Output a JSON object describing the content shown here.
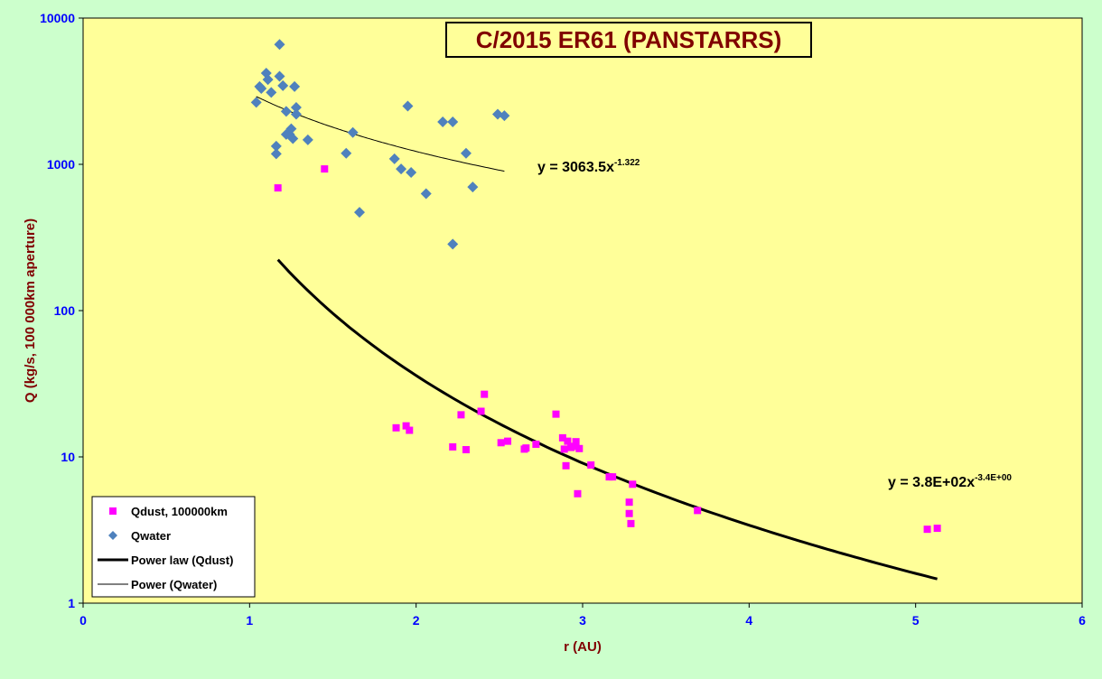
{
  "chart_data": {
    "type": "scatter",
    "title": "C/2015 ER61 (PANSTARRS)",
    "xlabel": "r (AU)",
    "ylabel": "Q (kg/s, 100 000km aperture)",
    "xlim": [
      0,
      6
    ],
    "ylim": [
      1,
      10000
    ],
    "yscale": "log",
    "x_ticks": [
      "0",
      "1",
      "2",
      "3",
      "4",
      "5",
      "6"
    ],
    "y_ticks": [
      "1",
      "10",
      "100",
      "1000",
      "10000"
    ],
    "grid": false,
    "legend_position": "bottom-left",
    "colors": {
      "page_background": "#ccffcc",
      "plot_background": "#ffff99",
      "qdust": "#ff00ff",
      "qwater": "#4f81bd",
      "title": "#800000",
      "ticks": "#0000ff"
    },
    "series": [
      {
        "name": "Qdust, 100000km",
        "kind": "scatter",
        "marker": "square",
        "color": "#ff00ff",
        "points": [
          [
            1.17,
            690
          ],
          [
            1.45,
            930
          ],
          [
            1.88,
            15.8
          ],
          [
            1.94,
            16.3
          ],
          [
            1.96,
            15.2
          ],
          [
            2.22,
            11.7
          ],
          [
            2.27,
            19.4
          ],
          [
            2.3,
            11.2
          ],
          [
            2.39,
            20.5
          ],
          [
            2.41,
            26.8
          ],
          [
            2.51,
            12.5
          ],
          [
            2.55,
            12.8
          ],
          [
            2.65,
            11.3
          ],
          [
            2.66,
            11.5
          ],
          [
            2.72,
            12.2
          ],
          [
            2.84,
            19.6
          ],
          [
            2.88,
            13.5
          ],
          [
            2.89,
            11.3
          ],
          [
            2.9,
            8.7
          ],
          [
            2.91,
            12.8
          ],
          [
            2.93,
            11.6
          ],
          [
            2.95,
            11.8
          ],
          [
            2.96,
            12.7
          ],
          [
            2.97,
            5.6
          ],
          [
            2.98,
            11.4
          ],
          [
            3.05,
            8.8
          ],
          [
            3.16,
            7.3
          ],
          [
            3.18,
            7.3
          ],
          [
            3.28,
            4.9
          ],
          [
            3.28,
            4.1
          ],
          [
            3.29,
            3.5
          ],
          [
            3.3,
            6.5
          ],
          [
            3.69,
            4.3
          ],
          [
            5.07,
            3.2
          ],
          [
            5.13,
            3.25
          ]
        ]
      },
      {
        "name": "Qwater",
        "kind": "scatter",
        "marker": "diamond",
        "color": "#4f81bd",
        "points": [
          [
            1.04,
            2650
          ],
          [
            1.06,
            3400
          ],
          [
            1.07,
            3300
          ],
          [
            1.1,
            4200
          ],
          [
            1.11,
            3800
          ],
          [
            1.13,
            3100
          ],
          [
            1.16,
            1330
          ],
          [
            1.16,
            1180
          ],
          [
            1.18,
            6600
          ],
          [
            1.18,
            4000
          ],
          [
            1.2,
            3450
          ],
          [
            1.22,
            2300
          ],
          [
            1.22,
            1600
          ],
          [
            1.24,
            1600
          ],
          [
            1.25,
            1750
          ],
          [
            1.26,
            1500
          ],
          [
            1.27,
            3400
          ],
          [
            1.28,
            2450
          ],
          [
            1.28,
            2200
          ],
          [
            1.35,
            1470
          ],
          [
            1.58,
            1190
          ],
          [
            1.62,
            1650
          ],
          [
            1.66,
            470
          ],
          [
            1.87,
            1090
          ],
          [
            1.91,
            930
          ],
          [
            1.95,
            2500
          ],
          [
            1.97,
            880
          ],
          [
            2.06,
            630
          ],
          [
            2.16,
            1950
          ],
          [
            2.22,
            1950
          ],
          [
            2.22,
            285
          ],
          [
            2.3,
            1190
          ],
          [
            2.34,
            700
          ],
          [
            2.49,
            2200
          ],
          [
            2.53,
            2150
          ]
        ]
      },
      {
        "name": "Power law (Qdust)",
        "kind": "trendline",
        "color": "#000000",
        "coefficient": 380,
        "exponent": -3.4,
        "x_range": [
          1.17,
          5.13
        ],
        "equation": {
          "base": "y = 3.8E+02x",
          "exp": "-3.4E+00"
        }
      },
      {
        "name": "Power (Qwater)",
        "kind": "trendline",
        "color": "#000000",
        "coefficient": 3063.5,
        "exponent": -1.322,
        "x_range": [
          1.04,
          2.53
        ],
        "equation": {
          "base": "y = 3063.5x",
          "exp": "-1.322"
        }
      }
    ]
  }
}
